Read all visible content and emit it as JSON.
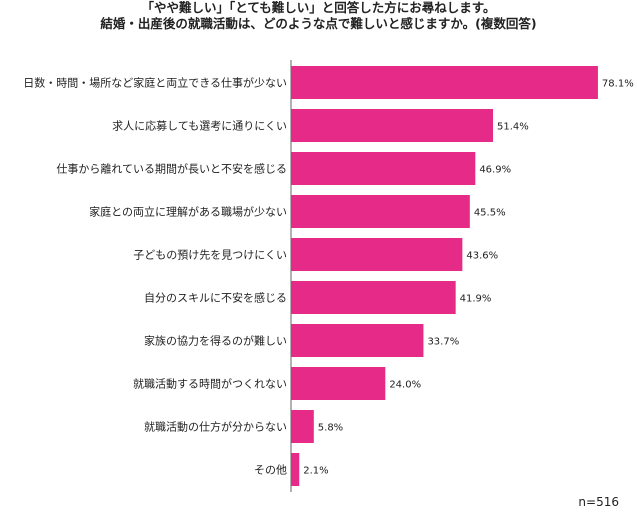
{
  "chart_data": {
    "type": "bar",
    "orientation": "horizontal",
    "title_lines": [
      "「やや難しい」「とても難しい」と回答した方にお尋ねします。",
      "結婚・出産後の就職活動は、どのような点で難しいと感じますか。(複数回答)"
    ],
    "categories": [
      "日数・時間・場所など家庭と両立できる仕事が少ない",
      "求人に応募しても選考に通りにくい",
      "仕事から離れている期間が長いと不安を感じる",
      "家庭との両立に理解がある職場が少ない",
      "子どもの預け先を見つけにくい",
      "自分のスキルに不安を感じる",
      "家族の協力を得るのが難しい",
      "就職活動する時間がつくれない",
      "就職活動の仕方が分からない",
      "その他"
    ],
    "values": [
      78.1,
      51.4,
      46.9,
      45.5,
      43.6,
      41.9,
      33.7,
      24.0,
      5.8,
      2.1
    ],
    "value_labels": [
      "78.1%",
      "51.4%",
      "46.9%",
      "45.5%",
      "43.6%",
      "41.9%",
      "33.7%",
      "24.0%",
      "5.8%",
      "2.1%"
    ],
    "xlim": [
      0,
      100
    ],
    "grid": false,
    "bar_color": "#e62a87"
  },
  "note": "n=516"
}
